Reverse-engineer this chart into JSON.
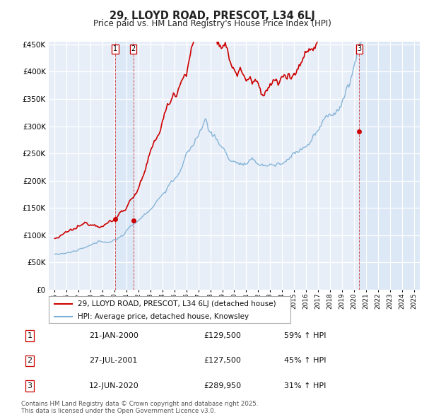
{
  "title": "29, LLOYD ROAD, PRESCOT, L34 6LJ",
  "subtitle": "Price paid vs. HM Land Registry's House Price Index (HPI)",
  "legend_line1": "29, LLOYD ROAD, PRESCOT, L34 6LJ (detached house)",
  "legend_line2": "HPI: Average price, detached house, Knowsley",
  "red_color": "#cc0000",
  "blue_color": "#7bafd4",
  "vline_color": "#cc0000",
  "bg_plot": "#e8eef8",
  "shade_color": "#dce8f5",
  "transactions": [
    {
      "label": "1",
      "date_x": 2000.05,
      "price": 129500,
      "year_str": "21-JAN-2000",
      "pct": "59%",
      "dir": "↑"
    },
    {
      "label": "2",
      "date_x": 2001.57,
      "price": 127500,
      "year_str": "27-JUL-2001",
      "pct": "45%",
      "dir": "↑"
    },
    {
      "label": "3",
      "date_x": 2020.44,
      "price": 289950,
      "year_str": "12-JUN-2020",
      "pct": "31%",
      "dir": "↑"
    }
  ],
  "footer_line1": "Contains HM Land Registry data © Crown copyright and database right 2025.",
  "footer_line2": "This data is licensed under the Open Government Licence v3.0.",
  "ylim": [
    0,
    455000
  ],
  "xlim": [
    1994.5,
    2025.5
  ],
  "yticks": [
    0,
    50000,
    100000,
    150000,
    200000,
    250000,
    300000,
    350000,
    400000,
    450000
  ],
  "xticks": [
    1995,
    1996,
    1997,
    1998,
    1999,
    2000,
    2001,
    2002,
    2003,
    2004,
    2005,
    2006,
    2007,
    2008,
    2009,
    2010,
    2011,
    2012,
    2013,
    2014,
    2015,
    2016,
    2017,
    2018,
    2019,
    2020,
    2021,
    2022,
    2023,
    2024,
    2025
  ]
}
